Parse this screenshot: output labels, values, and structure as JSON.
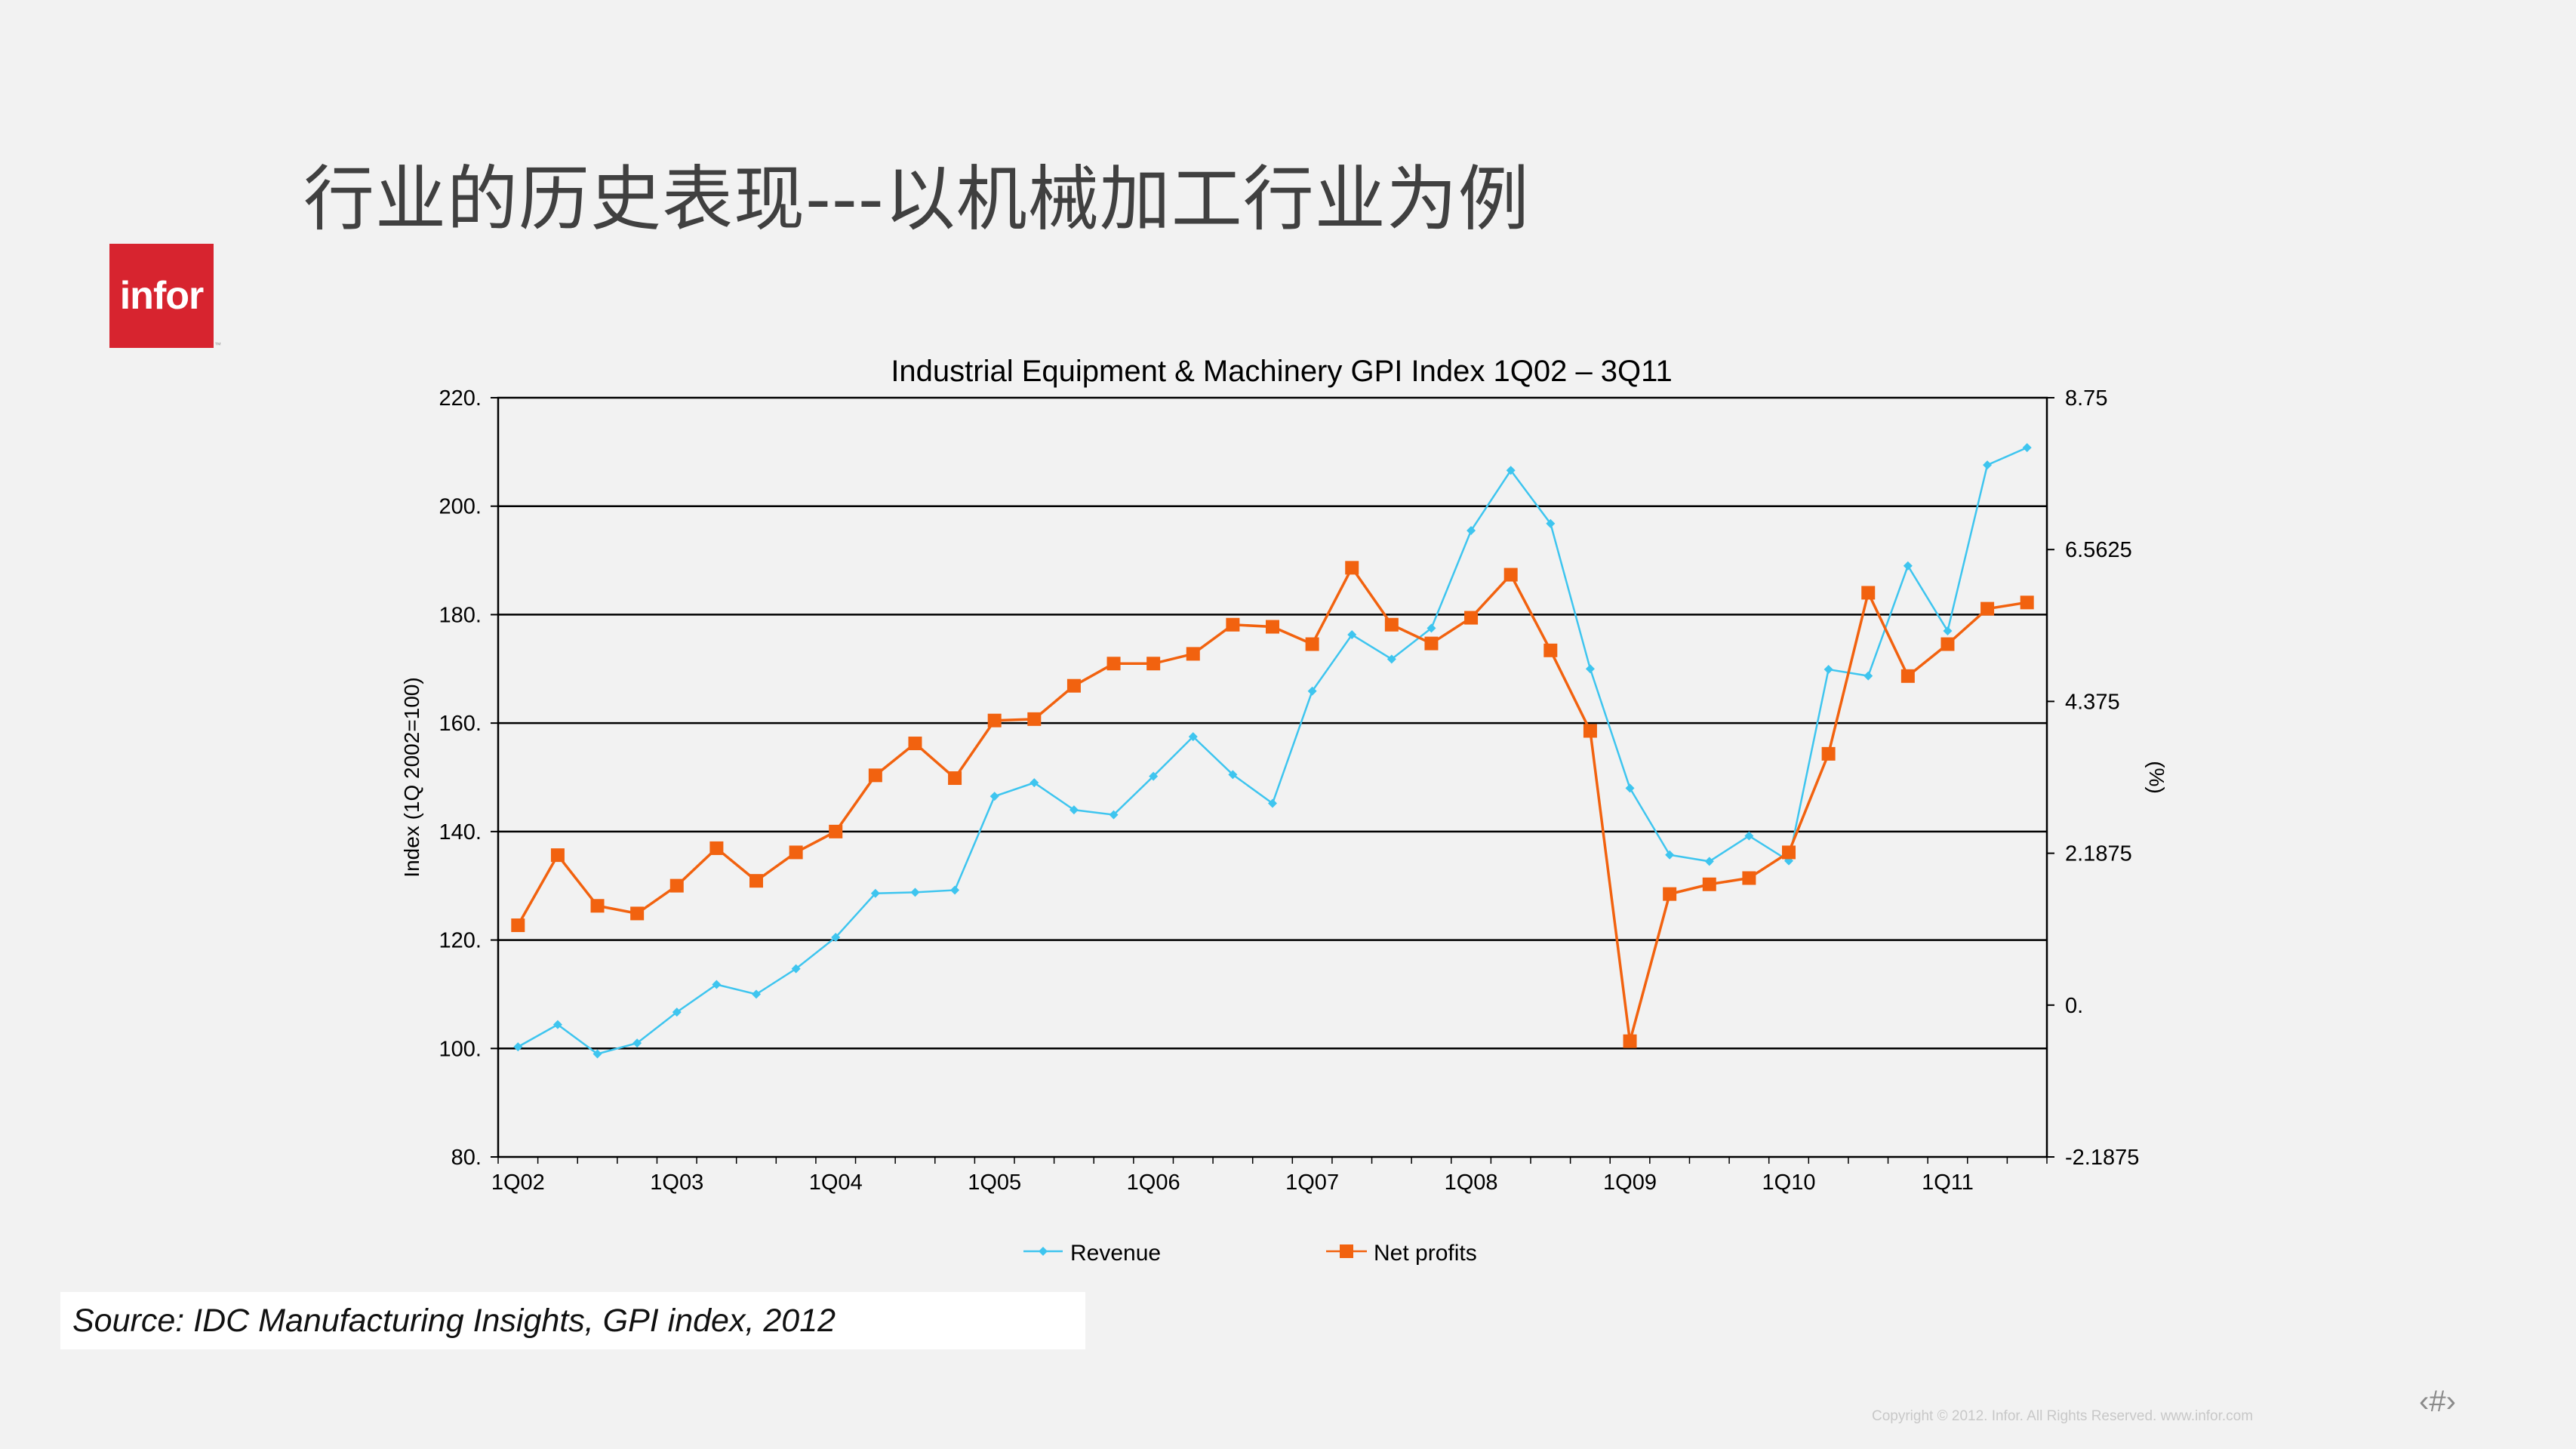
{
  "slide": {
    "title": "行业的历史表现---以机械加工行业为例",
    "logo_text": "infor",
    "logo_tm": "™",
    "source": "Source: IDC Manufacturing Insights, GPI index, 2012",
    "copyright": "Copyright © 2012. Infor. All Rights Reserved. www.infor.com",
    "page_number": "‹#›"
  },
  "colors": {
    "revenue": "#3ec5ef",
    "net_profits": "#f2620f",
    "logo": "#d7242f",
    "grid": "#000000"
  },
  "chart_data": {
    "type": "line",
    "title": "Industrial Equipment & Machinery GPI Index 1Q02 – 3Q11",
    "ylabel": "Index (1Q 2002=100)",
    "ylabel_right": "(%)",
    "ylim": [
      80,
      220
    ],
    "ylim_right": [
      -2.1875,
      8.75
    ],
    "yticks": [
      "80.",
      "100.",
      "120.",
      "140.",
      "160.",
      "180.",
      "200.",
      "220."
    ],
    "yticks_right": [
      "-2.1875",
      "0.",
      "2.1875",
      "4.375",
      "6.5625",
      "8.75"
    ],
    "x_tick_labels": [
      "1Q02",
      "1Q03",
      "1Q04",
      "1Q05",
      "1Q06",
      "1Q07",
      "1Q08",
      "1Q09",
      "1Q10",
      "1Q11"
    ],
    "categories": [
      "1Q02",
      "2Q02",
      "3Q02",
      "4Q02",
      "1Q03",
      "2Q03",
      "3Q03",
      "4Q03",
      "1Q04",
      "2Q04",
      "3Q04",
      "4Q04",
      "1Q05",
      "2Q05",
      "3Q05",
      "4Q05",
      "1Q06",
      "2Q06",
      "3Q06",
      "4Q06",
      "1Q07",
      "2Q07",
      "3Q07",
      "4Q07",
      "1Q08",
      "2Q08",
      "3Q08",
      "4Q08",
      "1Q09",
      "2Q09",
      "3Q09",
      "4Q09",
      "1Q10",
      "2Q10",
      "3Q10",
      "4Q10",
      "1Q11",
      "2Q11",
      "3Q11"
    ],
    "legend_position": "bottom",
    "series": [
      {
        "name": "Revenue",
        "axis": "left",
        "marker": "diamond",
        "values": [
          100.3,
          104.4,
          99.0,
          101.0,
          106.7,
          111.8,
          110.0,
          114.7,
          120.5,
          128.6,
          128.8,
          129.2,
          146.5,
          149.0,
          144.0,
          143.1,
          150.2,
          157.5,
          150.5,
          145.2,
          165.9,
          176.3,
          171.8,
          177.5,
          195.5,
          206.6,
          196.8,
          170.0,
          148.0,
          135.7,
          134.5,
          139.2,
          134.6,
          169.9,
          168.7,
          189.0,
          177.0,
          207.6,
          210.8
        ]
      },
      {
        "name": "Net profits",
        "axis": "right",
        "marker": "square",
        "values": [
          1.15,
          2.16,
          1.43,
          1.32,
          1.72,
          2.26,
          1.79,
          2.2,
          2.5,
          3.31,
          3.77,
          3.27,
          4.1,
          4.12,
          4.6,
          4.92,
          4.92,
          5.06,
          5.48,
          5.45,
          5.2,
          6.3,
          5.48,
          5.21,
          5.58,
          6.2,
          5.11,
          3.95,
          -0.52,
          1.6,
          1.74,
          1.83,
          2.2,
          3.62,
          5.94,
          4.74,
          5.2,
          5.71,
          5.8
        ]
      }
    ]
  }
}
